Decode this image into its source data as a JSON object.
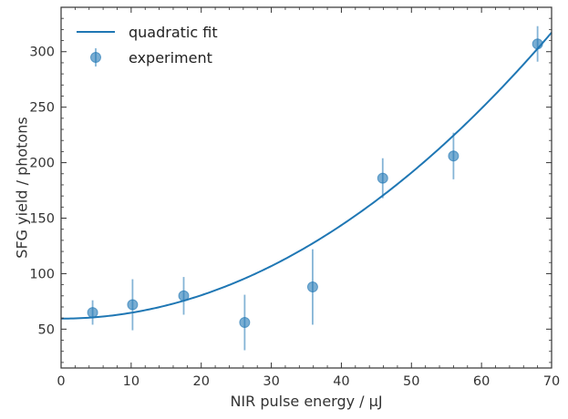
{
  "chart_data": {
    "type": "scatter",
    "xlabel": "NIR pulse energy / μJ",
    "ylabel": "SFG yield / photons",
    "xlim": [
      0,
      70
    ],
    "ylim": [
      15,
      340
    ],
    "x_ticks": [
      0,
      10,
      20,
      30,
      40,
      50,
      60,
      70
    ],
    "y_ticks": [
      50,
      100,
      150,
      200,
      250,
      300
    ],
    "x_tick_labels": [
      "0",
      "10",
      "20",
      "30",
      "40",
      "50",
      "60",
      "70"
    ],
    "y_tick_labels": [
      "50",
      "100",
      "150",
      "200",
      "250",
      "300"
    ],
    "grid": false,
    "legend_position": "top-left",
    "series": [
      {
        "name": "quadratic fit",
        "kind": "line",
        "color": "#1f77b4",
        "model": {
          "form": "a + b*x^2",
          "a": 59.5,
          "b": 0.0526
        }
      },
      {
        "name": "experiment",
        "kind": "scatter-errorbar",
        "color": "#1f77b4",
        "points": [
          {
            "x": 4.5,
            "y": 65,
            "yerr": 11
          },
          {
            "x": 10.2,
            "y": 72,
            "yerr": 23
          },
          {
            "x": 17.5,
            "y": 80,
            "yerr": 17
          },
          {
            "x": 26.2,
            "y": 56,
            "yerr": 25
          },
          {
            "x": 35.9,
            "y": 88,
            "yerr": 34
          },
          {
            "x": 45.9,
            "y": 186,
            "yerr": 18
          },
          {
            "x": 56.0,
            "y": 206,
            "yerr": 21
          },
          {
            "x": 68.0,
            "y": 307,
            "yerr": 16
          }
        ]
      }
    ]
  }
}
